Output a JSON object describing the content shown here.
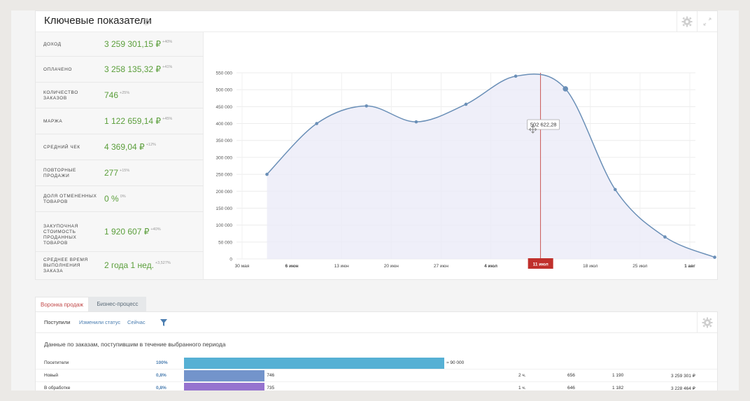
{
  "title": "Ключевые показатели",
  "help_icon": "?",
  "metrics": [
    {
      "label": "Доход",
      "value": "3 259 301,15 ₽",
      "delta": "+40%"
    },
    {
      "label": "Оплачено",
      "value": "3 258 135,32 ₽",
      "delta": "+41%"
    },
    {
      "label": "Количество заказов",
      "value": "746",
      "delta": "+25%"
    },
    {
      "label": "Маржа",
      "value": "1 122 659,14 ₽",
      "delta": "+45%"
    },
    {
      "label": "Средний чек",
      "value": "4 369,04 ₽",
      "delta": "+12%"
    },
    {
      "label": "Повторные продажи",
      "value": "277",
      "delta": "+15%"
    },
    {
      "label": "Доля отмененных товаров",
      "value": "0 %",
      "delta": "0%"
    },
    {
      "label": "Закупочная стоимость проданных товаров",
      "value": "1 920 607 ₽",
      "delta": "+40%"
    },
    {
      "label": "Среднее время выполнения заказа",
      "value": "2 года 1 нед.",
      "delta": "+3,527%"
    }
  ],
  "chart_data": {
    "type": "area",
    "x_ticks": [
      "30 мая",
      "6 июн",
      "13 июн",
      "20 июн",
      "27 июн",
      "4 июл",
      "11 июл",
      "18 июл",
      "25 июл",
      "1 авг"
    ],
    "bold_ticks": [
      "6 июн",
      "4 июл",
      "1 авг"
    ],
    "y_ticks": [
      "0",
      "50 000",
      "100 000",
      "150 000",
      "200 000",
      "250 000",
      "300 000",
      "350 000",
      "400 000",
      "450 000",
      "500 000",
      "550 000"
    ],
    "ylim": [
      0,
      550000
    ],
    "points": [
      {
        "x": "2 июн",
        "y": 250000
      },
      {
        "x": "9 июн",
        "y": 400000
      },
      {
        "x": "16 июн",
        "y": 452000
      },
      {
        "x": "23 июн",
        "y": 405000
      },
      {
        "x": "30 июн",
        "y": 457000
      },
      {
        "x": "7 июл",
        "y": 540000
      },
      {
        "x": "14 июл",
        "y": 502622
      },
      {
        "x": "21 июл",
        "y": 205000
      },
      {
        "x": "28 июл",
        "y": 65000
      },
      {
        "x": "4 авг",
        "y": 5000
      }
    ],
    "crosshair_label": "11 июл",
    "tooltip": "502 622,28",
    "line_color": "#6a8fb7",
    "fill_color": "#ebebf7",
    "crosshair_color": "#c0302c"
  },
  "tabs": [
    {
      "label": "Воронка продаж",
      "active": true
    },
    {
      "label": "Бизнес-процесс",
      "active": false
    }
  ],
  "subtabs": [
    "Поступили",
    "Изменили статус",
    "Сейчас"
  ],
  "funnel_caption": "Данные по заказам, поступившим в течение выбранного периода",
  "funnel": [
    {
      "name": "Посетители",
      "pct": "100%",
      "fill": 1.0,
      "count": "≈ 90 000",
      "color": "#56b0d4",
      "dur": "",
      "c1": "",
      "c2": "",
      "sum": ""
    },
    {
      "name": "Новый",
      "pct": "0,8%",
      "fill": 0.31,
      "count": "746",
      "color": "#7394cb",
      "dur": "2 ч.",
      "c1": "656",
      "c2": "1 190",
      "sum": "3 259 301 ₽"
    },
    {
      "name": "В обработке",
      "pct": "0,8%",
      "fill": 0.31,
      "count": "735",
      "color": "#9673cf",
      "dur": "1 ч.",
      "c1": "646",
      "c2": "1 182",
      "sum": "3 228 464 ₽"
    }
  ]
}
